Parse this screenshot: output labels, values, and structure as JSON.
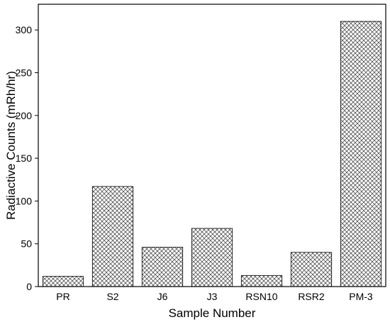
{
  "chart_data": {
    "type": "bar",
    "title": "",
    "xlabel": "Sample Number",
    "ylabel": "Radiactive Counts (mRh/hr)",
    "categories": [
      "PR",
      "S2",
      "J6",
      "J3",
      "RSN10",
      "RSR2",
      "PM-3"
    ],
    "values": [
      12,
      117,
      46,
      68,
      13,
      40,
      310
    ],
    "ylim": [
      0,
      330
    ],
    "yticks": [
      0,
      50,
      100,
      150,
      200,
      250,
      300
    ],
    "grid": false,
    "legend": "none",
    "bar_fill": "crosshatch",
    "colors": {
      "bar_stroke": "#000000",
      "hatch": "#555555",
      "axis": "#000000"
    }
  }
}
